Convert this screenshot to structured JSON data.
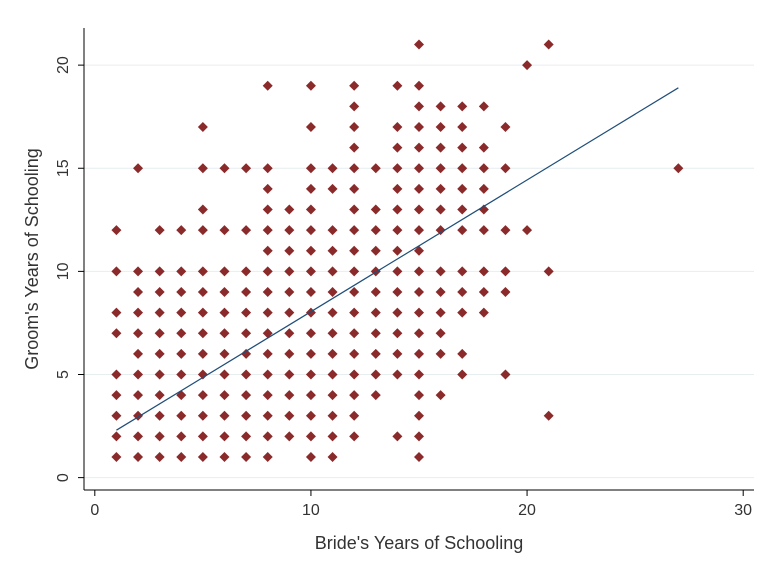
{
  "chart_data": {
    "type": "scatter",
    "title": "",
    "xlabel": "Bride's Years of Schooling",
    "ylabel": "Groom's Years of Schooling",
    "xlim": [
      -0.5,
      30.5
    ],
    "ylim": [
      -0.6,
      21.8
    ],
    "xticks": [
      0,
      10,
      20,
      30
    ],
    "yticks": [
      0,
      5,
      10,
      15,
      20
    ],
    "grid": "horizontal",
    "marker_color": "#8b2a2a",
    "fit_line_color": "#1f4e79",
    "fit_line": {
      "x": [
        1,
        27
      ],
      "y": [
        2.3,
        18.9
      ]
    },
    "points": [
      [
        1,
        1
      ],
      [
        1,
        2
      ],
      [
        1,
        3
      ],
      [
        1,
        4
      ],
      [
        1,
        5
      ],
      [
        1,
        7
      ],
      [
        1,
        8
      ],
      [
        1,
        10
      ],
      [
        1,
        12
      ],
      [
        2,
        1
      ],
      [
        2,
        2
      ],
      [
        2,
        3
      ],
      [
        2,
        4
      ],
      [
        2,
        5
      ],
      [
        2,
        6
      ],
      [
        2,
        7
      ],
      [
        2,
        8
      ],
      [
        2,
        9
      ],
      [
        2,
        10
      ],
      [
        2,
        15
      ],
      [
        3,
        1
      ],
      [
        3,
        2
      ],
      [
        3,
        3
      ],
      [
        3,
        4
      ],
      [
        3,
        5
      ],
      [
        3,
        6
      ],
      [
        3,
        7
      ],
      [
        3,
        8
      ],
      [
        3,
        9
      ],
      [
        3,
        10
      ],
      [
        3,
        12
      ],
      [
        4,
        1
      ],
      [
        4,
        2
      ],
      [
        4,
        3
      ],
      [
        4,
        4
      ],
      [
        4,
        5
      ],
      [
        4,
        6
      ],
      [
        4,
        7
      ],
      [
        4,
        8
      ],
      [
        4,
        9
      ],
      [
        4,
        10
      ],
      [
        4,
        12
      ],
      [
        5,
        1
      ],
      [
        5,
        2
      ],
      [
        5,
        3
      ],
      [
        5,
        4
      ],
      [
        5,
        5
      ],
      [
        5,
        6
      ],
      [
        5,
        7
      ],
      [
        5,
        8
      ],
      [
        5,
        9
      ],
      [
        5,
        10
      ],
      [
        5,
        12
      ],
      [
        5,
        13
      ],
      [
        5,
        15
      ],
      [
        5,
        17
      ],
      [
        6,
        1
      ],
      [
        6,
        2
      ],
      [
        6,
        3
      ],
      [
        6,
        4
      ],
      [
        6,
        5
      ],
      [
        6,
        6
      ],
      [
        6,
        7
      ],
      [
        6,
        8
      ],
      [
        6,
        9
      ],
      [
        6,
        10
      ],
      [
        6,
        12
      ],
      [
        6,
        15
      ],
      [
        7,
        1
      ],
      [
        7,
        2
      ],
      [
        7,
        3
      ],
      [
        7,
        4
      ],
      [
        7,
        5
      ],
      [
        7,
        6
      ],
      [
        7,
        7
      ],
      [
        7,
        8
      ],
      [
        7,
        9
      ],
      [
        7,
        10
      ],
      [
        7,
        12
      ],
      [
        7,
        15
      ],
      [
        8,
        1
      ],
      [
        8,
        2
      ],
      [
        8,
        3
      ],
      [
        8,
        4
      ],
      [
        8,
        5
      ],
      [
        8,
        6
      ],
      [
        8,
        7
      ],
      [
        8,
        8
      ],
      [
        8,
        9
      ],
      [
        8,
        10
      ],
      [
        8,
        11
      ],
      [
        8,
        12
      ],
      [
        8,
        13
      ],
      [
        8,
        14
      ],
      [
        8,
        15
      ],
      [
        8,
        19
      ],
      [
        9,
        2
      ],
      [
        9,
        3
      ],
      [
        9,
        4
      ],
      [
        9,
        5
      ],
      [
        9,
        6
      ],
      [
        9,
        7
      ],
      [
        9,
        8
      ],
      [
        9,
        9
      ],
      [
        9,
        10
      ],
      [
        9,
        11
      ],
      [
        9,
        12
      ],
      [
        9,
        13
      ],
      [
        10,
        1
      ],
      [
        10,
        2
      ],
      [
        10,
        3
      ],
      [
        10,
        4
      ],
      [
        10,
        5
      ],
      [
        10,
        6
      ],
      [
        10,
        7
      ],
      [
        10,
        8
      ],
      [
        10,
        9
      ],
      [
        10,
        10
      ],
      [
        10,
        11
      ],
      [
        10,
        12
      ],
      [
        10,
        13
      ],
      [
        10,
        14
      ],
      [
        10,
        15
      ],
      [
        10,
        17
      ],
      [
        10,
        19
      ],
      [
        11,
        1
      ],
      [
        11,
        2
      ],
      [
        11,
        3
      ],
      [
        11,
        4
      ],
      [
        11,
        5
      ],
      [
        11,
        6
      ],
      [
        11,
        7
      ],
      [
        11,
        8
      ],
      [
        11,
        9
      ],
      [
        11,
        10
      ],
      [
        11,
        11
      ],
      [
        11,
        12
      ],
      [
        11,
        14
      ],
      [
        11,
        15
      ],
      [
        12,
        2
      ],
      [
        12,
        3
      ],
      [
        12,
        4
      ],
      [
        12,
        5
      ],
      [
        12,
        6
      ],
      [
        12,
        7
      ],
      [
        12,
        8
      ],
      [
        12,
        9
      ],
      [
        12,
        10
      ],
      [
        12,
        11
      ],
      [
        12,
        12
      ],
      [
        12,
        13
      ],
      [
        12,
        14
      ],
      [
        12,
        15
      ],
      [
        12,
        16
      ],
      [
        12,
        17
      ],
      [
        12,
        18
      ],
      [
        12,
        19
      ],
      [
        13,
        4
      ],
      [
        13,
        5
      ],
      [
        13,
        6
      ],
      [
        13,
        7
      ],
      [
        13,
        8
      ],
      [
        13,
        9
      ],
      [
        13,
        10
      ],
      [
        13,
        11
      ],
      [
        13,
        12
      ],
      [
        13,
        13
      ],
      [
        13,
        15
      ],
      [
        14,
        2
      ],
      [
        14,
        5
      ],
      [
        14,
        6
      ],
      [
        14,
        7
      ],
      [
        14,
        8
      ],
      [
        14,
        9
      ],
      [
        14,
        10
      ],
      [
        14,
        11
      ],
      [
        14,
        12
      ],
      [
        14,
        13
      ],
      [
        14,
        14
      ],
      [
        14,
        15
      ],
      [
        14,
        16
      ],
      [
        14,
        17
      ],
      [
        14,
        19
      ],
      [
        15,
        1
      ],
      [
        15,
        2
      ],
      [
        15,
        3
      ],
      [
        15,
        4
      ],
      [
        15,
        5
      ],
      [
        15,
        6
      ],
      [
        15,
        7
      ],
      [
        15,
        8
      ],
      [
        15,
        9
      ],
      [
        15,
        10
      ],
      [
        15,
        11
      ],
      [
        15,
        12
      ],
      [
        15,
        13
      ],
      [
        15,
        14
      ],
      [
        15,
        15
      ],
      [
        15,
        16
      ],
      [
        15,
        17
      ],
      [
        15,
        18
      ],
      [
        15,
        19
      ],
      [
        15,
        21
      ],
      [
        16,
        4
      ],
      [
        16,
        6
      ],
      [
        16,
        7
      ],
      [
        16,
        8
      ],
      [
        16,
        9
      ],
      [
        16,
        10
      ],
      [
        16,
        12
      ],
      [
        16,
        13
      ],
      [
        16,
        14
      ],
      [
        16,
        15
      ],
      [
        16,
        16
      ],
      [
        16,
        17
      ],
      [
        16,
        18
      ],
      [
        17,
        5
      ],
      [
        17,
        6
      ],
      [
        17,
        8
      ],
      [
        17,
        9
      ],
      [
        17,
        10
      ],
      [
        17,
        12
      ],
      [
        17,
        13
      ],
      [
        17,
        14
      ],
      [
        17,
        15
      ],
      [
        17,
        16
      ],
      [
        17,
        17
      ],
      [
        17,
        18
      ],
      [
        18,
        8
      ],
      [
        18,
        9
      ],
      [
        18,
        10
      ],
      [
        18,
        12
      ],
      [
        18,
        13
      ],
      [
        18,
        14
      ],
      [
        18,
        15
      ],
      [
        18,
        16
      ],
      [
        18,
        18
      ],
      [
        19,
        5
      ],
      [
        19,
        9
      ],
      [
        19,
        10
      ],
      [
        19,
        12
      ],
      [
        19,
        15
      ],
      [
        19,
        17
      ],
      [
        20,
        12
      ],
      [
        20,
        20
      ],
      [
        21,
        3
      ],
      [
        21,
        10
      ],
      [
        21,
        21
      ],
      [
        27,
        15
      ]
    ]
  }
}
